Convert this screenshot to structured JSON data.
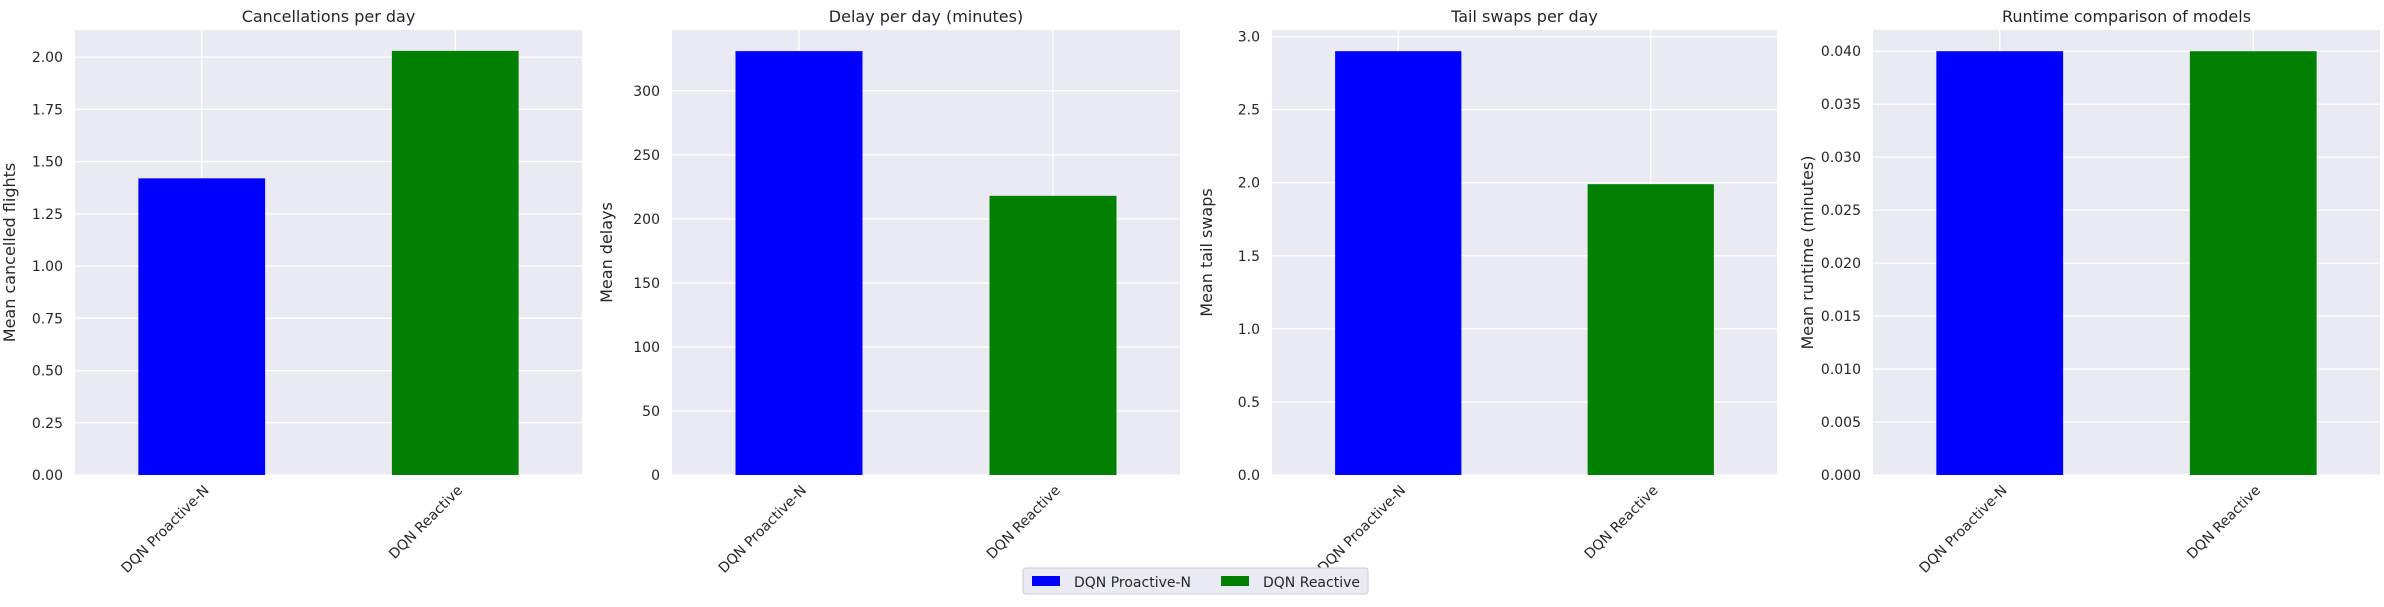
{
  "chart_data": [
    {
      "type": "bar",
      "title": "Cancellations per day",
      "ylabel": "Mean cancelled flights",
      "categories": [
        "DQN Proactive-N",
        "DQN Reactive"
      ],
      "values": [
        1.42,
        2.03
      ],
      "ylim": [
        0,
        2.13
      ],
      "yticks": [
        "0.00",
        "0.25",
        "0.50",
        "0.75",
        "1.00",
        "1.25",
        "1.50",
        "1.75",
        "2.00"
      ],
      "grid": true
    },
    {
      "type": "bar",
      "title": "Delay per day (minutes)",
      "ylabel": "Mean delays",
      "categories": [
        "DQN Proactive-N",
        "DQN Reactive"
      ],
      "values": [
        331,
        218
      ],
      "ylim": [
        0,
        347.5
      ],
      "yticks": [
        "0",
        "50",
        "100",
        "150",
        "200",
        "250",
        "300"
      ],
      "grid": true
    },
    {
      "type": "bar",
      "title": "Tail swaps per day",
      "ylabel": "Mean tail swaps",
      "categories": [
        "DQN Proactive-N",
        "DQN Reactive"
      ],
      "values": [
        2.9,
        1.99
      ],
      "ylim": [
        0,
        3.045
      ],
      "yticks": [
        "0.0",
        "0.5",
        "1.0",
        "1.5",
        "2.0",
        "2.5",
        "3.0"
      ],
      "grid": true
    },
    {
      "type": "bar",
      "title": "Runtime comparison of models",
      "ylabel": "Mean runtime (minutes)",
      "categories": [
        "DQN Proactive-N",
        "DQN Reactive"
      ],
      "values": [
        0.04,
        0.04
      ],
      "ylim": [
        0,
        0.042
      ],
      "yticks": [
        "0.000",
        "0.005",
        "0.010",
        "0.015",
        "0.020",
        "0.025",
        "0.030",
        "0.035",
        "0.040"
      ],
      "grid": true
    }
  ],
  "legend": {
    "placement": "bottom-center",
    "items": [
      {
        "label": "DQN Proactive-N",
        "color": "#0000ff"
      },
      {
        "label": "DQN Reactive",
        "color": "#008000"
      }
    ]
  },
  "colors": {
    "plot_background": "#eaeaf2",
    "grid": "#ffffff",
    "series": [
      "#0000ff",
      "#008000"
    ]
  }
}
